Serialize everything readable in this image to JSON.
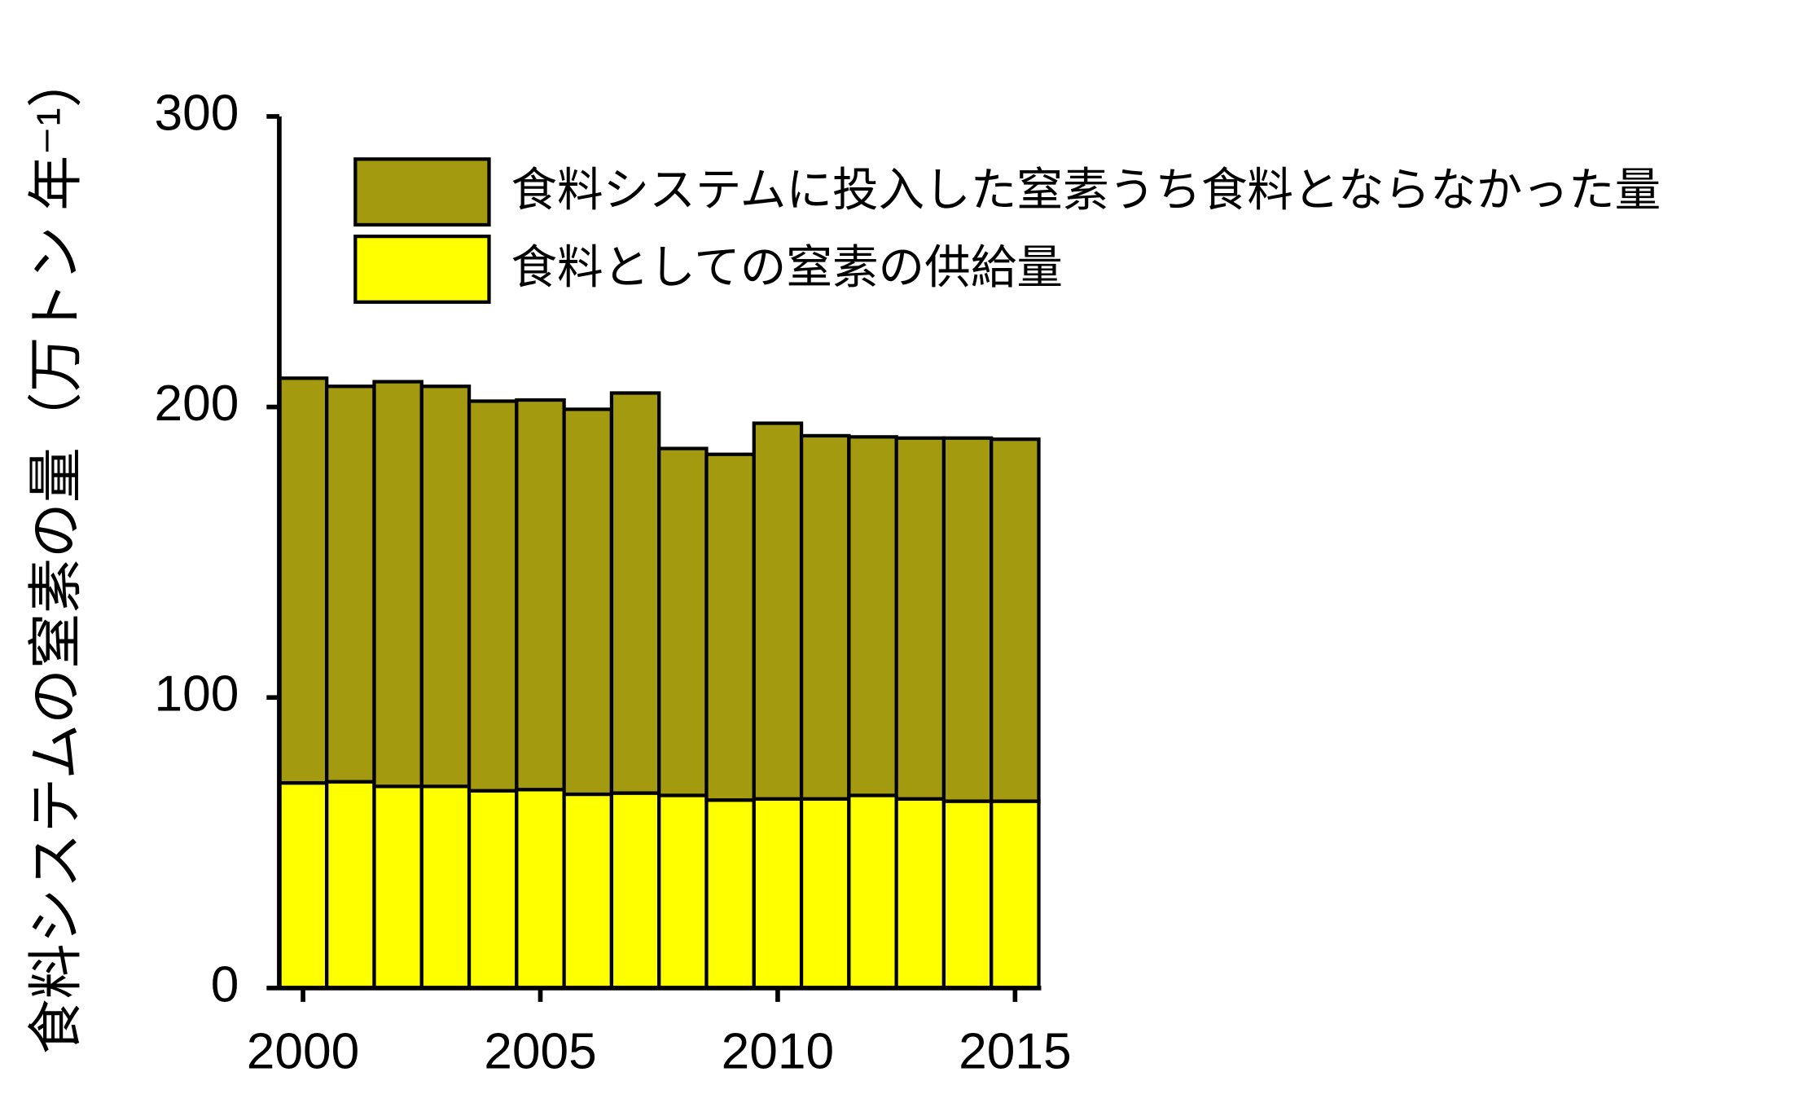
{
  "chart_data": {
    "type": "stacked-bar",
    "ylabel": "食料システムの窒素の量（万トン 年⁻¹）",
    "x": [
      2000,
      2001,
      2002,
      2003,
      2004,
      2005,
      2006,
      2007,
      2008,
      2009,
      2010,
      2011,
      2012,
      2013,
      2014,
      2015
    ],
    "xlim": [
      1999.5,
      2015.55
    ],
    "xticks": [
      2000,
      2005,
      2010,
      2015
    ],
    "ylim": [
      0,
      300
    ],
    "yticks": [
      0,
      100,
      200,
      300
    ],
    "legend": "upper-right",
    "series": [
      {
        "name": "食料としての窒素の供給量",
        "color": "#ffff00",
        "values": [
          70.6,
          71.0,
          69.4,
          69.4,
          67.9,
          68.3,
          66.7,
          67.1,
          66.3,
          64.7,
          65.1,
          65.1,
          66.3,
          65.1,
          64.3,
          64.3
        ]
      },
      {
        "name": "食料システムに投入した窒素うち食料とならなかった量",
        "color": "#a39a10",
        "values": [
          139.3,
          136.1,
          139.3,
          137.7,
          134.1,
          134.1,
          132.5,
          137.7,
          119.4,
          119.0,
          129.3,
          125.0,
          123.4,
          124.2,
          125.0,
          124.6
        ]
      }
    ]
  }
}
